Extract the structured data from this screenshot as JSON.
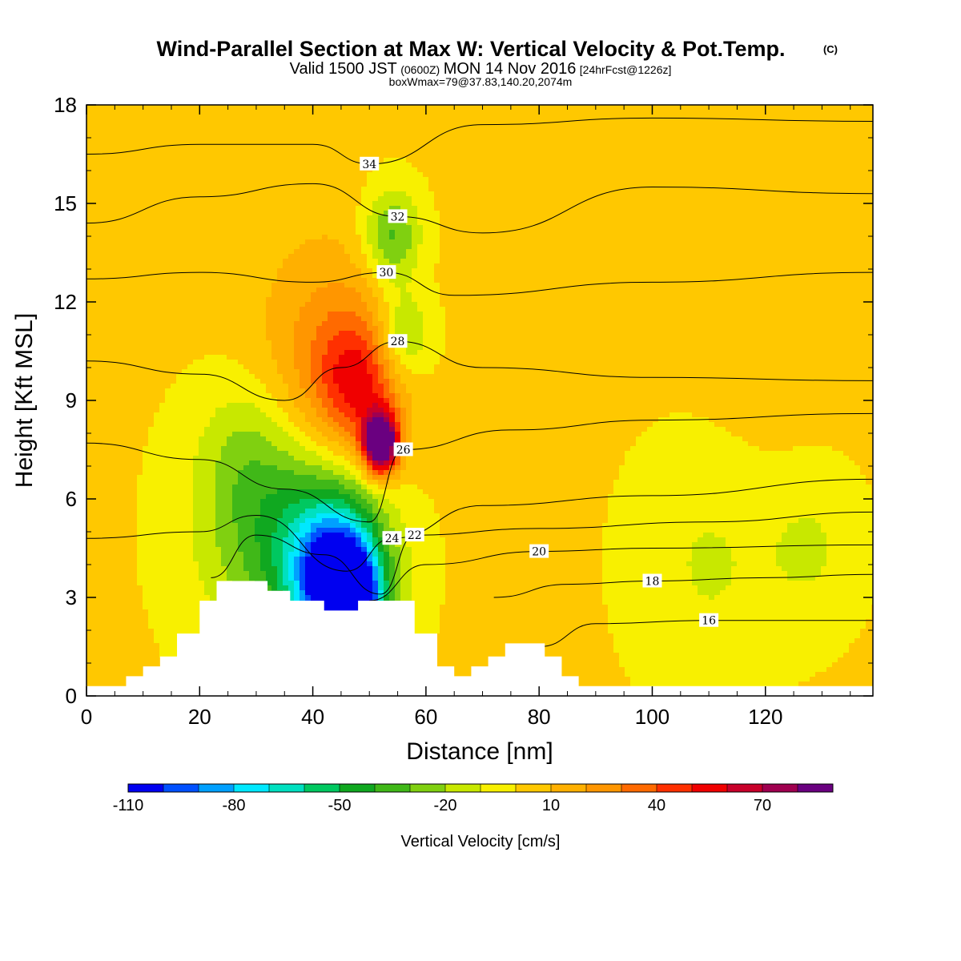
{
  "header": {
    "title": "Wind-Parallel Section at Max W: Vertical Velocity & Pot.Temp.",
    "copyright": "(C)",
    "valid_a": "Valid 1500 JST",
    "valid_b": "(0600Z)",
    "valid_c": "MON 14 Nov 2016",
    "valid_d": "[24hrFcst@1226z]",
    "box": "boxWmax=79@37.83,140.20,2074m"
  },
  "chart_data": {
    "type": "heatmap",
    "xlabel": "Distance [nm]",
    "ylabel": "Height [Kft MSL]",
    "xlim": [
      0,
      139
    ],
    "ylim": [
      0,
      18
    ],
    "x_ticks": [
      "0",
      "20",
      "40",
      "60",
      "80",
      "100",
      "120"
    ],
    "y_ticks": [
      "0",
      "3",
      "6",
      "9",
      "12",
      "15",
      "18"
    ],
    "terrain_kft": [
      [
        0,
        0.3
      ],
      [
        7,
        0.3
      ],
      [
        7,
        0.6
      ],
      [
        10,
        0.6
      ],
      [
        10,
        0.9
      ],
      [
        13,
        0.9
      ],
      [
        13,
        1.2
      ],
      [
        16,
        1.2
      ],
      [
        16,
        1.9
      ],
      [
        20,
        1.9
      ],
      [
        20,
        2.9
      ],
      [
        23,
        2.9
      ],
      [
        23,
        3.5
      ],
      [
        32,
        3.5
      ],
      [
        32,
        3.2
      ],
      [
        36,
        3.2
      ],
      [
        36,
        2.9
      ],
      [
        42,
        2.9
      ],
      [
        42,
        2.6
      ],
      [
        48,
        2.6
      ],
      [
        48,
        2.9
      ],
      [
        58,
        2.9
      ],
      [
        58,
        1.9
      ],
      [
        62,
        1.9
      ],
      [
        62,
        0.9
      ],
      [
        65,
        0.9
      ],
      [
        65,
        0.6
      ],
      [
        68,
        0.6
      ],
      [
        68,
        0.9
      ],
      [
        71,
        0.9
      ],
      [
        71,
        1.2
      ],
      [
        74,
        1.2
      ],
      [
        74,
        1.6
      ],
      [
        81,
        1.6
      ],
      [
        81,
        1.2
      ],
      [
        84,
        1.2
      ],
      [
        84,
        0.6
      ],
      [
        87,
        0.6
      ],
      [
        87,
        0.3
      ],
      [
        139,
        0.3
      ]
    ],
    "theta_contours": [
      {
        "label": "16",
        "points": [
          [
            80,
            1.5
          ],
          [
            90,
            2.2
          ],
          [
            110,
            2.3
          ],
          [
            139,
            2.3
          ]
        ]
      },
      {
        "label": "18",
        "points": [
          [
            72,
            3.0
          ],
          [
            85,
            3.4
          ],
          [
            100,
            3.5
          ],
          [
            120,
            3.6
          ],
          [
            139,
            3.7
          ]
        ]
      },
      {
        "label": "20",
        "points": [
          [
            50,
            2.9
          ],
          [
            60,
            4.0
          ],
          [
            80,
            4.4
          ],
          [
            100,
            4.5
          ],
          [
            139,
            4.6
          ]
        ]
      },
      {
        "label": "22",
        "points": [
          [
            22,
            3.6
          ],
          [
            30,
            4.9
          ],
          [
            42,
            4.3
          ],
          [
            52,
            3.1
          ],
          [
            58,
            4.9
          ],
          [
            80,
            5.1
          ],
          [
            110,
            5.3
          ],
          [
            139,
            5.6
          ]
        ]
      },
      {
        "label": "24",
        "points": [
          [
            0,
            4.8
          ],
          [
            20,
            5.0
          ],
          [
            30,
            5.5
          ],
          [
            46,
            3.8
          ],
          [
            54,
            4.8
          ],
          [
            70,
            5.8
          ],
          [
            100,
            6.1
          ],
          [
            139,
            6.6
          ]
        ]
      },
      {
        "label": "26",
        "points": [
          [
            0,
            7.7
          ],
          [
            20,
            7.2
          ],
          [
            35,
            6.3
          ],
          [
            50,
            5.3
          ],
          [
            56,
            7.5
          ],
          [
            75,
            8.1
          ],
          [
            100,
            8.4
          ],
          [
            139,
            8.6
          ]
        ]
      },
      {
        "label": "28",
        "points": [
          [
            0,
            10.2
          ],
          [
            20,
            9.8
          ],
          [
            35,
            9.0
          ],
          [
            45,
            10.0
          ],
          [
            55,
            10.8
          ],
          [
            70,
            10.0
          ],
          [
            100,
            9.7
          ],
          [
            139,
            9.6
          ]
        ]
      },
      {
        "label": "30",
        "points": [
          [
            0,
            12.7
          ],
          [
            20,
            12.9
          ],
          [
            40,
            12.6
          ],
          [
            53,
            12.9
          ],
          [
            65,
            12.2
          ],
          [
            100,
            12.6
          ],
          [
            139,
            12.9
          ]
        ]
      },
      {
        "label": "32",
        "points": [
          [
            0,
            14.4
          ],
          [
            20,
            15.2
          ],
          [
            40,
            15.6
          ],
          [
            55,
            14.6
          ],
          [
            70,
            14.1
          ],
          [
            100,
            15.5
          ],
          [
            139,
            15.3
          ]
        ]
      },
      {
        "label": "34",
        "points": [
          [
            0,
            16.5
          ],
          [
            20,
            16.8
          ],
          [
            40,
            16.8
          ],
          [
            50,
            16.2
          ],
          [
            70,
            17.4
          ],
          [
            100,
            17.6
          ],
          [
            139,
            17.5
          ]
        ]
      }
    ],
    "colorbar": {
      "label": "Vertical Velocity [cm/s]",
      "tick_labels": [
        "-110",
        "-80",
        "-50",
        "-20",
        "10",
        "40",
        "70"
      ],
      "tick_values": [
        -110,
        -80,
        -50,
        -20,
        10,
        40,
        70
      ],
      "levels": [
        -110,
        -100,
        -90,
        -80,
        -70,
        -60,
        -50,
        -40,
        -30,
        -20,
        -10,
        0,
        10,
        20,
        30,
        40,
        50,
        60,
        70,
        80,
        90
      ],
      "colors": [
        "#0000f0",
        "#0050ff",
        "#00a0ff",
        "#00e8ff",
        "#00e0c0",
        "#00c860",
        "#10a820",
        "#40b818",
        "#80d010",
        "#c8e800",
        "#f8f000",
        "#ffc800",
        "#ffb000",
        "#ff9600",
        "#ff6a00",
        "#ff3000",
        "#f00000",
        "#c8002a",
        "#a00050",
        "#6a0080"
      ]
    },
    "w_features": [
      {
        "x": 25,
        "y": 17,
        "w": 10,
        "v": 3
      },
      {
        "x": 120,
        "y": 10,
        "w": 12,
        "v": 3
      },
      {
        "x": 40,
        "y": 12,
        "w": 16,
        "v": 4
      },
      {
        "x": 75,
        "y": 16,
        "w": 10,
        "v": 2
      },
      {
        "x": 130,
        "y": 14,
        "w": 10,
        "v": 1
      },
      {
        "x": 44,
        "y": 10,
        "w": 12,
        "v": 24
      },
      {
        "x": 48,
        "y": 9.5,
        "w": 7,
        "v": 36
      },
      {
        "x": 52,
        "y": 8.0,
        "w": 3,
        "v": 50
      },
      {
        "x": 52,
        "y": 7.5,
        "w": 3,
        "v": 72
      },
      {
        "x": 54,
        "y": 14,
        "w": 5,
        "v": -36
      },
      {
        "x": 56,
        "y": 11,
        "w": 5,
        "v": -30
      },
      {
        "x": 42,
        "y": 4.5,
        "w": 11,
        "v": -40
      },
      {
        "x": 44,
        "y": 3.6,
        "w": 8,
        "v": -62
      },
      {
        "x": 46,
        "y": 3.0,
        "w": 6,
        "v": -82
      },
      {
        "x": 47,
        "y": 2.8,
        "w": 3,
        "v": -100
      },
      {
        "x": 30,
        "y": 5.0,
        "w": 12,
        "v": -24
      },
      {
        "x": 28,
        "y": 7.5,
        "w": 8,
        "v": -14
      },
      {
        "x": 110,
        "y": 4.0,
        "w": 12,
        "v": -12
      },
      {
        "x": 128,
        "y": 4.5,
        "w": 8,
        "v": -12
      }
    ]
  }
}
